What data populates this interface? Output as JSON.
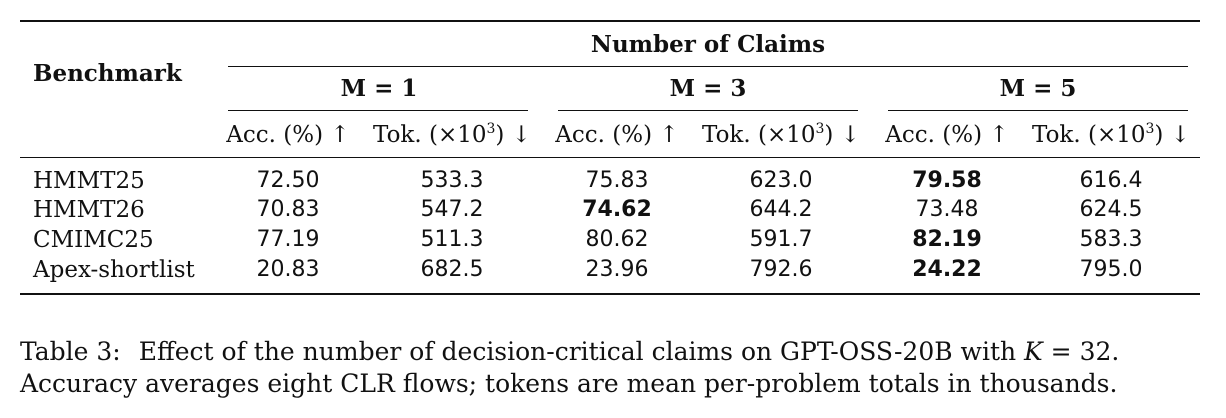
{
  "table": {
    "row_header": "Benchmark",
    "group_header": "Number of Claims",
    "groups": [
      "M = 1",
      "M = 3",
      "M = 5"
    ],
    "sub_headers": {
      "acc": "Acc. (%) ↑",
      "tok_prefix": "Tok. (×10",
      "tok_exp": "3",
      "tok_suffix": ") ↓"
    },
    "rows": [
      {
        "name": "HMMT25",
        "cells": [
          "72.50",
          "533.3",
          "75.83",
          "623.0",
          "79.58",
          "616.4"
        ],
        "bold": [
          4
        ]
      },
      {
        "name": "HMMT26",
        "cells": [
          "70.83",
          "547.2",
          "74.62",
          "644.2",
          "73.48",
          "624.5"
        ],
        "bold": [
          2
        ]
      },
      {
        "name": "CMIMC25",
        "cells": [
          "77.19",
          "511.3",
          "80.62",
          "591.7",
          "82.19",
          "583.3"
        ],
        "bold": [
          4
        ]
      },
      {
        "name": "Apex-shortlist",
        "cells": [
          "20.83",
          "682.5",
          "23.96",
          "792.6",
          "24.22",
          "795.0"
        ],
        "bold": [
          4
        ]
      }
    ]
  },
  "caption": {
    "label": "Table 3:",
    "text_before": "Effect of the number of decision-critical claims on GPT-OSS-20B with ",
    "var": "K",
    "text_after": " = 32.",
    "line2": "Accuracy averages eight CLR flows; tokens are mean per-problem totals in thousands."
  }
}
